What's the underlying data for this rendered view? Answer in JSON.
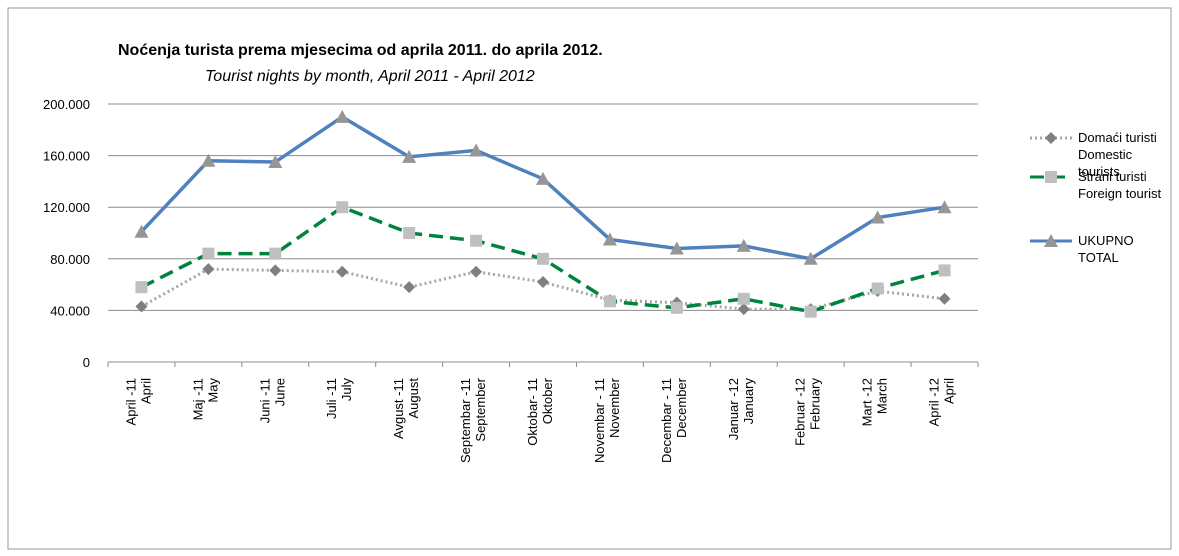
{
  "chart_data": {
    "type": "line",
    "title": "Noćenja turista prema mjesecima od aprila 2011.  do  aprila 2012.",
    "subtitle": "Tourist nights by month,  April 2011 -  April 2012",
    "categories": [
      [
        "April -11",
        "April"
      ],
      [
        "Maj -11",
        "May"
      ],
      [
        "Juni -11",
        "June"
      ],
      [
        "Juli -11",
        "July"
      ],
      [
        "Avgust -11",
        "August"
      ],
      [
        "Septembar -11",
        "September"
      ],
      [
        "Oktobar- 11",
        "Oktober"
      ],
      [
        "Novembar - 11",
        "November"
      ],
      [
        "Decembar - 11",
        "December"
      ],
      [
        "Januar -12",
        "January"
      ],
      [
        "Februar -12",
        "February"
      ],
      [
        "Mart -12",
        "March"
      ],
      [
        "April -12",
        "April"
      ]
    ],
    "series": [
      {
        "name": "Domaći turisti\nDomestic\ntourists",
        "color": "#a6a6a6",
        "line_style": "dotted",
        "marker": "diamond",
        "marker_color": "#7f7f7f",
        "values": [
          43000,
          72000,
          71000,
          70000,
          58000,
          70000,
          62000,
          48000,
          46000,
          41000,
          41000,
          55000,
          49000
        ]
      },
      {
        "name": "Strani turisti\nForeign tourist",
        "color": "#00843d",
        "line_style": "dashed",
        "marker": "square",
        "marker_color": "#bfbfbf",
        "values": [
          58000,
          84000,
          84000,
          120000,
          100000,
          94000,
          80000,
          47000,
          42000,
          49000,
          39000,
          57000,
          71000
        ]
      },
      {
        "name": "UKUPNO\nTOTAL",
        "color": "#4f81bd",
        "line_style": "solid",
        "marker": "triangle",
        "marker_color": "#969696",
        "values": [
          101000,
          156000,
          155000,
          190000,
          159000,
          164000,
          142000,
          95000,
          88000,
          90000,
          80000,
          112000,
          120000
        ]
      }
    ],
    "ylim": [
      0,
      200000
    ],
    "yticks": [
      0,
      {
        "value": 40000,
        "label": "40.000"
      },
      {
        "value": 80000,
        "label": "80.000"
      },
      {
        "value": 120000,
        "label": "120.000"
      },
      {
        "value": 160000,
        "label": "160.000"
      },
      {
        "value": 200000,
        "label": "200.000"
      }
    ],
    "grid": true,
    "legend": "right"
  }
}
